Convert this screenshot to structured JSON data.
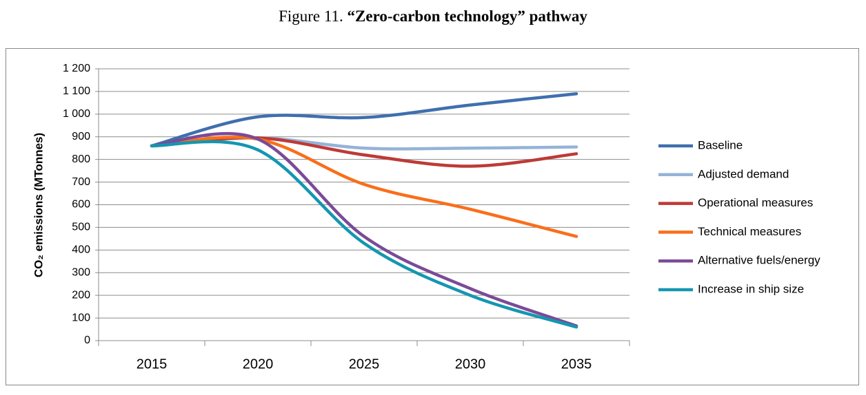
{
  "chart_data": {
    "type": "line",
    "figure_label": "Figure 11.",
    "title": "“Zero-carbon technology” pathway",
    "y_label": "CO₂ emissions (MTonnes)",
    "categories": [
      "2015",
      "2020",
      "2025",
      "2030",
      "2035"
    ],
    "series": [
      {
        "name": "Baseline",
        "color": "#3f6fae",
        "values": [
          860,
          988,
          985,
          1040,
          1090
        ]
      },
      {
        "name": "Adjusted demand",
        "color": "#95b3d7",
        "values": [
          860,
          895,
          850,
          850,
          855
        ]
      },
      {
        "name": "Operational measures",
        "color": "#be3a36",
        "values": [
          860,
          895,
          820,
          770,
          825
        ]
      },
      {
        "name": "Technical measures",
        "color": "#f96f1a",
        "values": [
          860,
          890,
          690,
          580,
          460
        ]
      },
      {
        "name": "Alternative fuels/energy",
        "color": "#7a4b97",
        "values": [
          860,
          890,
          460,
          230,
          65
        ]
      },
      {
        "name": "Increase in ship size",
        "color": "#1596b0",
        "values": [
          860,
          842,
          430,
          200,
          60
        ]
      }
    ],
    "ylim": [
      0,
      1200
    ],
    "yticks": [
      0,
      100,
      200,
      300,
      400,
      500,
      600,
      700,
      800,
      900,
      {
        "value": 1000,
        "label": "1 000"
      },
      {
        "value": 1100,
        "label": "1 100"
      },
      {
        "value": 1200,
        "label": "1 200"
      }
    ],
    "grid": true,
    "smooth": true,
    "legend": "right"
  }
}
